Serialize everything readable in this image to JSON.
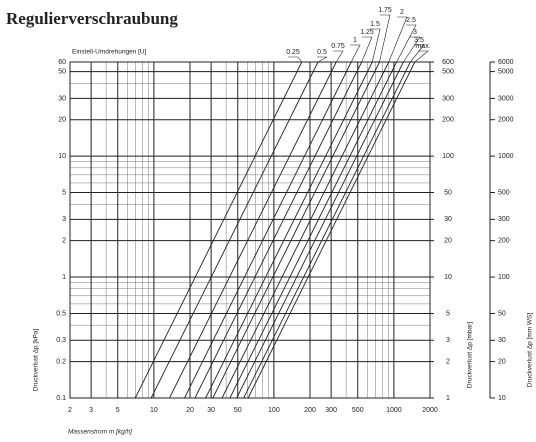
{
  "chart_data": {
    "type": "line",
    "title": "Regulierverschraubung",
    "top_label": "Einstell-Umdrehungen [U]",
    "x_label": "Massenstrom m [kg/h]",
    "y_label": "Druckverlust Δp [kPa]",
    "y2_label": "Druckverlust Δp [mbar]",
    "y3_label": "Druckverlust Δp [mm WS]",
    "log_x": true,
    "log_y": true,
    "grid": true,
    "xlim": [
      2,
      2000
    ],
    "xticks": [
      2,
      3,
      5,
      10,
      20,
      30,
      50,
      100,
      200,
      300,
      500,
      1000,
      2000
    ],
    "x_grid": [
      2,
      3,
      4,
      5,
      6,
      7,
      8,
      9,
      10,
      20,
      30,
      40,
      50,
      60,
      70,
      80,
      90,
      100,
      200,
      300,
      400,
      500,
      600,
      700,
      800,
      900,
      1000,
      2000
    ],
    "ylim": [
      0.1,
      60
    ],
    "yticks": [
      0.1,
      0.2,
      0.3,
      0.5,
      1,
      2,
      3,
      5,
      10,
      20,
      30,
      50,
      60
    ],
    "y_grid": [
      0.1,
      0.2,
      0.3,
      0.4,
      0.5,
      0.6,
      0.7,
      0.8,
      0.9,
      1,
      2,
      3,
      4,
      5,
      6,
      7,
      8,
      9,
      10,
      20,
      30,
      40,
      50,
      60
    ],
    "y2lim": [
      1,
      600
    ],
    "y2ticks": [
      1,
      2,
      3,
      5,
      10,
      20,
      30,
      50,
      100,
      200,
      300,
      500,
      600
    ],
    "y3lim": [
      10,
      6000
    ],
    "y3ticks": [
      10,
      20,
      30,
      50,
      100,
      200,
      300,
      500,
      1000,
      2000,
      3000,
      5000,
      6000
    ],
    "color": "#222222",
    "series": [
      {
        "name": "0.25",
        "x": [
          7,
          171
        ],
        "y": [
          0.1,
          60
        ]
      },
      {
        "name": "0.5",
        "x": [
          9.5,
          233
        ],
        "y": [
          0.1,
          60
        ]
      },
      {
        "name": "0.75",
        "x": [
          13.5,
          331
        ],
        "y": [
          0.1,
          60
        ]
      },
      {
        "name": "1",
        "x": [
          18,
          441
        ],
        "y": [
          0.1,
          60
        ]
      },
      {
        "name": "1.25",
        "x": [
          22,
          539
        ],
        "y": [
          0.1,
          60
        ]
      },
      {
        "name": "1.5",
        "x": [
          27,
          661
        ],
        "y": [
          0.1,
          60
        ]
      },
      {
        "name": "1.75",
        "x": [
          31,
          759
        ],
        "y": [
          0.1,
          60
        ]
      },
      {
        "name": "2",
        "x": [
          37,
          906
        ],
        "y": [
          0.1,
          60
        ]
      },
      {
        "name": "2.5",
        "x": [
          43,
          1053
        ],
        "y": [
          0.1,
          60
        ]
      },
      {
        "name": "3",
        "x": [
          49,
          1200
        ],
        "y": [
          0.1,
          60
        ]
      },
      {
        "name": "3.5",
        "x": [
          56,
          1371
        ],
        "y": [
          0.1,
          60
        ]
      },
      {
        "name": "max.",
        "x": [
          61,
          1494
        ],
        "y": [
          0.1,
          60
        ]
      }
    ]
  }
}
